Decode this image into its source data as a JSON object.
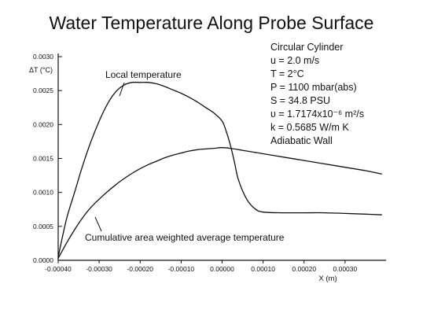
{
  "chart_data": {
    "type": "line",
    "title": "Water Temperature Along Probe Surface",
    "xlabel": "X (m)",
    "ylabel": "ΔT (°C)",
    "xlim": [
      -0.0004,
      0.0004
    ],
    "ylim": [
      0,
      0.003
    ],
    "x_ticks": [
      -0.0004,
      -0.0003,
      -0.0002,
      -0.0001,
      0.0,
      0.0001,
      0.0002,
      0.0003
    ],
    "x_tick_labels": [
      "-0.00040",
      "-0.00030",
      "-0.00020",
      "-0.00010",
      "0.00000",
      "0.00010",
      "0.00020",
      "0.00030"
    ],
    "y_ticks": [
      0,
      0.0005,
      0.001,
      0.0015,
      0.002,
      0.0025,
      0.003
    ],
    "y_tick_labels": [
      "0.0000",
      "0.0005",
      "0.0010",
      "0.0015",
      "0.0020",
      "0.0025",
      "0.0030"
    ],
    "grid": false,
    "series": [
      {
        "name": "Local temperature",
        "x": [
          -0.0004,
          -0.00038,
          -0.00036,
          -0.00034,
          -0.00032,
          -0.0003,
          -0.00028,
          -0.00026,
          -0.00024,
          -0.00022,
          -0.0002,
          -0.00018,
          -0.00016,
          -0.00014,
          -0.00012,
          -0.0001,
          -8e-05,
          -6e-05,
          -4e-05,
          -2e-05,
          0.0,
          1e-05,
          2e-05,
          3e-05,
          4e-05,
          6e-05,
          8e-05,
          0.0001,
          0.00015,
          0.0002,
          0.00025,
          0.0003,
          0.00035,
          0.00039
        ],
        "y": [
          5e-05,
          0.0006,
          0.001,
          0.0014,
          0.00175,
          0.00205,
          0.0023,
          0.00248,
          0.00258,
          0.00262,
          0.00262,
          0.00262,
          0.0026,
          0.00256,
          0.00251,
          0.00246,
          0.0024,
          0.00233,
          0.00225,
          0.00217,
          0.00205,
          0.0019,
          0.0017,
          0.00145,
          0.00118,
          0.0009,
          0.00076,
          0.00071,
          0.0007,
          0.0007,
          0.0007,
          0.00069,
          0.00068,
          0.00067
        ]
      },
      {
        "name": "Cumulative area weighted average temperature",
        "x": [
          -0.0004,
          -0.00038,
          -0.00036,
          -0.00034,
          -0.00032,
          -0.0003,
          -0.00028,
          -0.00026,
          -0.00024,
          -0.00022,
          -0.0002,
          -0.00018,
          -0.00016,
          -0.00014,
          -0.00012,
          -0.0001,
          -8e-05,
          -6e-05,
          -4e-05,
          -2e-05,
          0.0,
          2e-05,
          4e-05,
          6e-05,
          8e-05,
          0.0001,
          0.00015,
          0.0002,
          0.00025,
          0.0003,
          0.00035,
          0.00039
        ],
        "y": [
          3e-05,
          0.00025,
          0.00045,
          0.00063,
          0.00078,
          0.0009,
          0.00101,
          0.00111,
          0.0012,
          0.00128,
          0.00135,
          0.00141,
          0.00146,
          0.00151,
          0.00155,
          0.00158,
          0.00161,
          0.00163,
          0.00164,
          0.00165,
          0.00166,
          0.00165,
          0.00163,
          0.00161,
          0.00159,
          0.00157,
          0.00152,
          0.00147,
          0.00142,
          0.00137,
          0.00132,
          0.00127
        ]
      }
    ],
    "annotations": [
      "Local temperature",
      "Cumulative area weighted average temperature"
    ]
  },
  "info_box": [
    "Circular Cylinder",
    "u = 2.0 m/s",
    "T = 2°C",
    "P = 1100 mbar(abs)",
    "S = 34.8 PSU",
    "υ = 1.7174x10⁻⁶ m²/s",
    "k = 0.5685 W/m K",
    "Adiabatic Wall"
  ]
}
